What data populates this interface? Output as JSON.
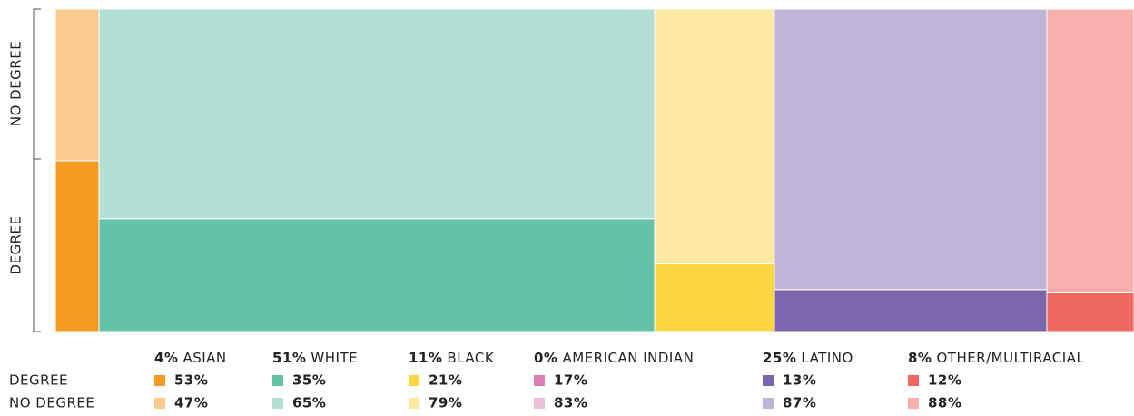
{
  "chart_data": {
    "type": "mosaic",
    "categories": [
      "ASIAN",
      "WHITE",
      "BLACK",
      "AMERICAN INDIAN",
      "LATINO",
      "OTHER/MULTIRACIAL"
    ],
    "shares": [
      4,
      51,
      11,
      0,
      25,
      8
    ],
    "share_labels": [
      "4%",
      "51%",
      "11%",
      "0%",
      "25%",
      "8%"
    ],
    "series": [
      {
        "name": "DEGREE",
        "colors": [
          "#f59b23",
          "#66c3a9",
          "#fdd641",
          "#db7fb5",
          "#7c66ad",
          "#f0685f"
        ],
        "values": [
          53,
          35,
          21,
          17,
          13,
          12
        ],
        "value_labels": [
          "53%",
          "35%",
          "21%",
          "17%",
          "13%",
          "12%"
        ]
      },
      {
        "name": "NO DEGREE",
        "colors": [
          "#f9cb8f",
          "#b3e0d5",
          "#fde9a0",
          "#edbfda",
          "#bfb3d6",
          "#f7b0ac"
        ],
        "values": [
          47,
          65,
          79,
          83,
          87,
          88
        ],
        "value_labels": [
          "47%",
          "65%",
          "79%",
          "83%",
          "87%",
          "88%"
        ]
      }
    ]
  }
}
